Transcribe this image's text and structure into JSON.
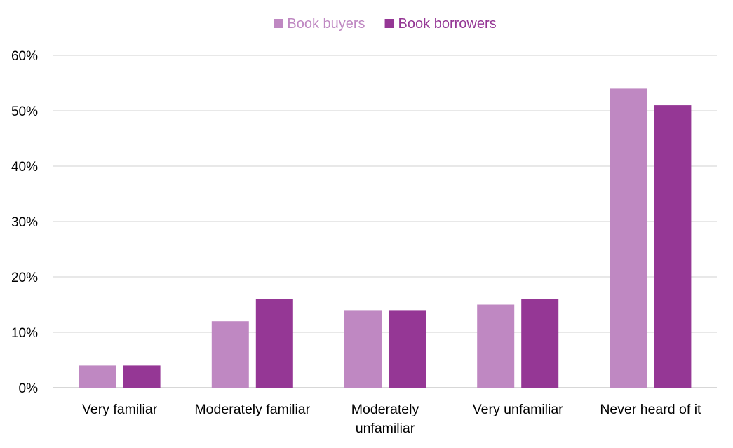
{
  "chart_data": {
    "type": "bar",
    "categories": [
      [
        "Very familiar"
      ],
      [
        "Moderately familiar"
      ],
      [
        "Moderately",
        "unfamiliar"
      ],
      [
        "Very unfamiliar"
      ],
      [
        "Never heard of it"
      ]
    ],
    "series": [
      {
        "name": "Book buyers",
        "color": "#bf88c2",
        "values": [
          4,
          12,
          14,
          15,
          54
        ]
      },
      {
        "name": "Book borrowers",
        "color": "#953795",
        "values": [
          4,
          16,
          14,
          16,
          51
        ]
      }
    ],
    "ylim": [
      0,
      60
    ],
    "yticks": [
      "0%",
      "10%",
      "20%",
      "30%",
      "40%",
      "50%",
      "60%"
    ],
    "grid": true,
    "legend_position": "top-center"
  }
}
